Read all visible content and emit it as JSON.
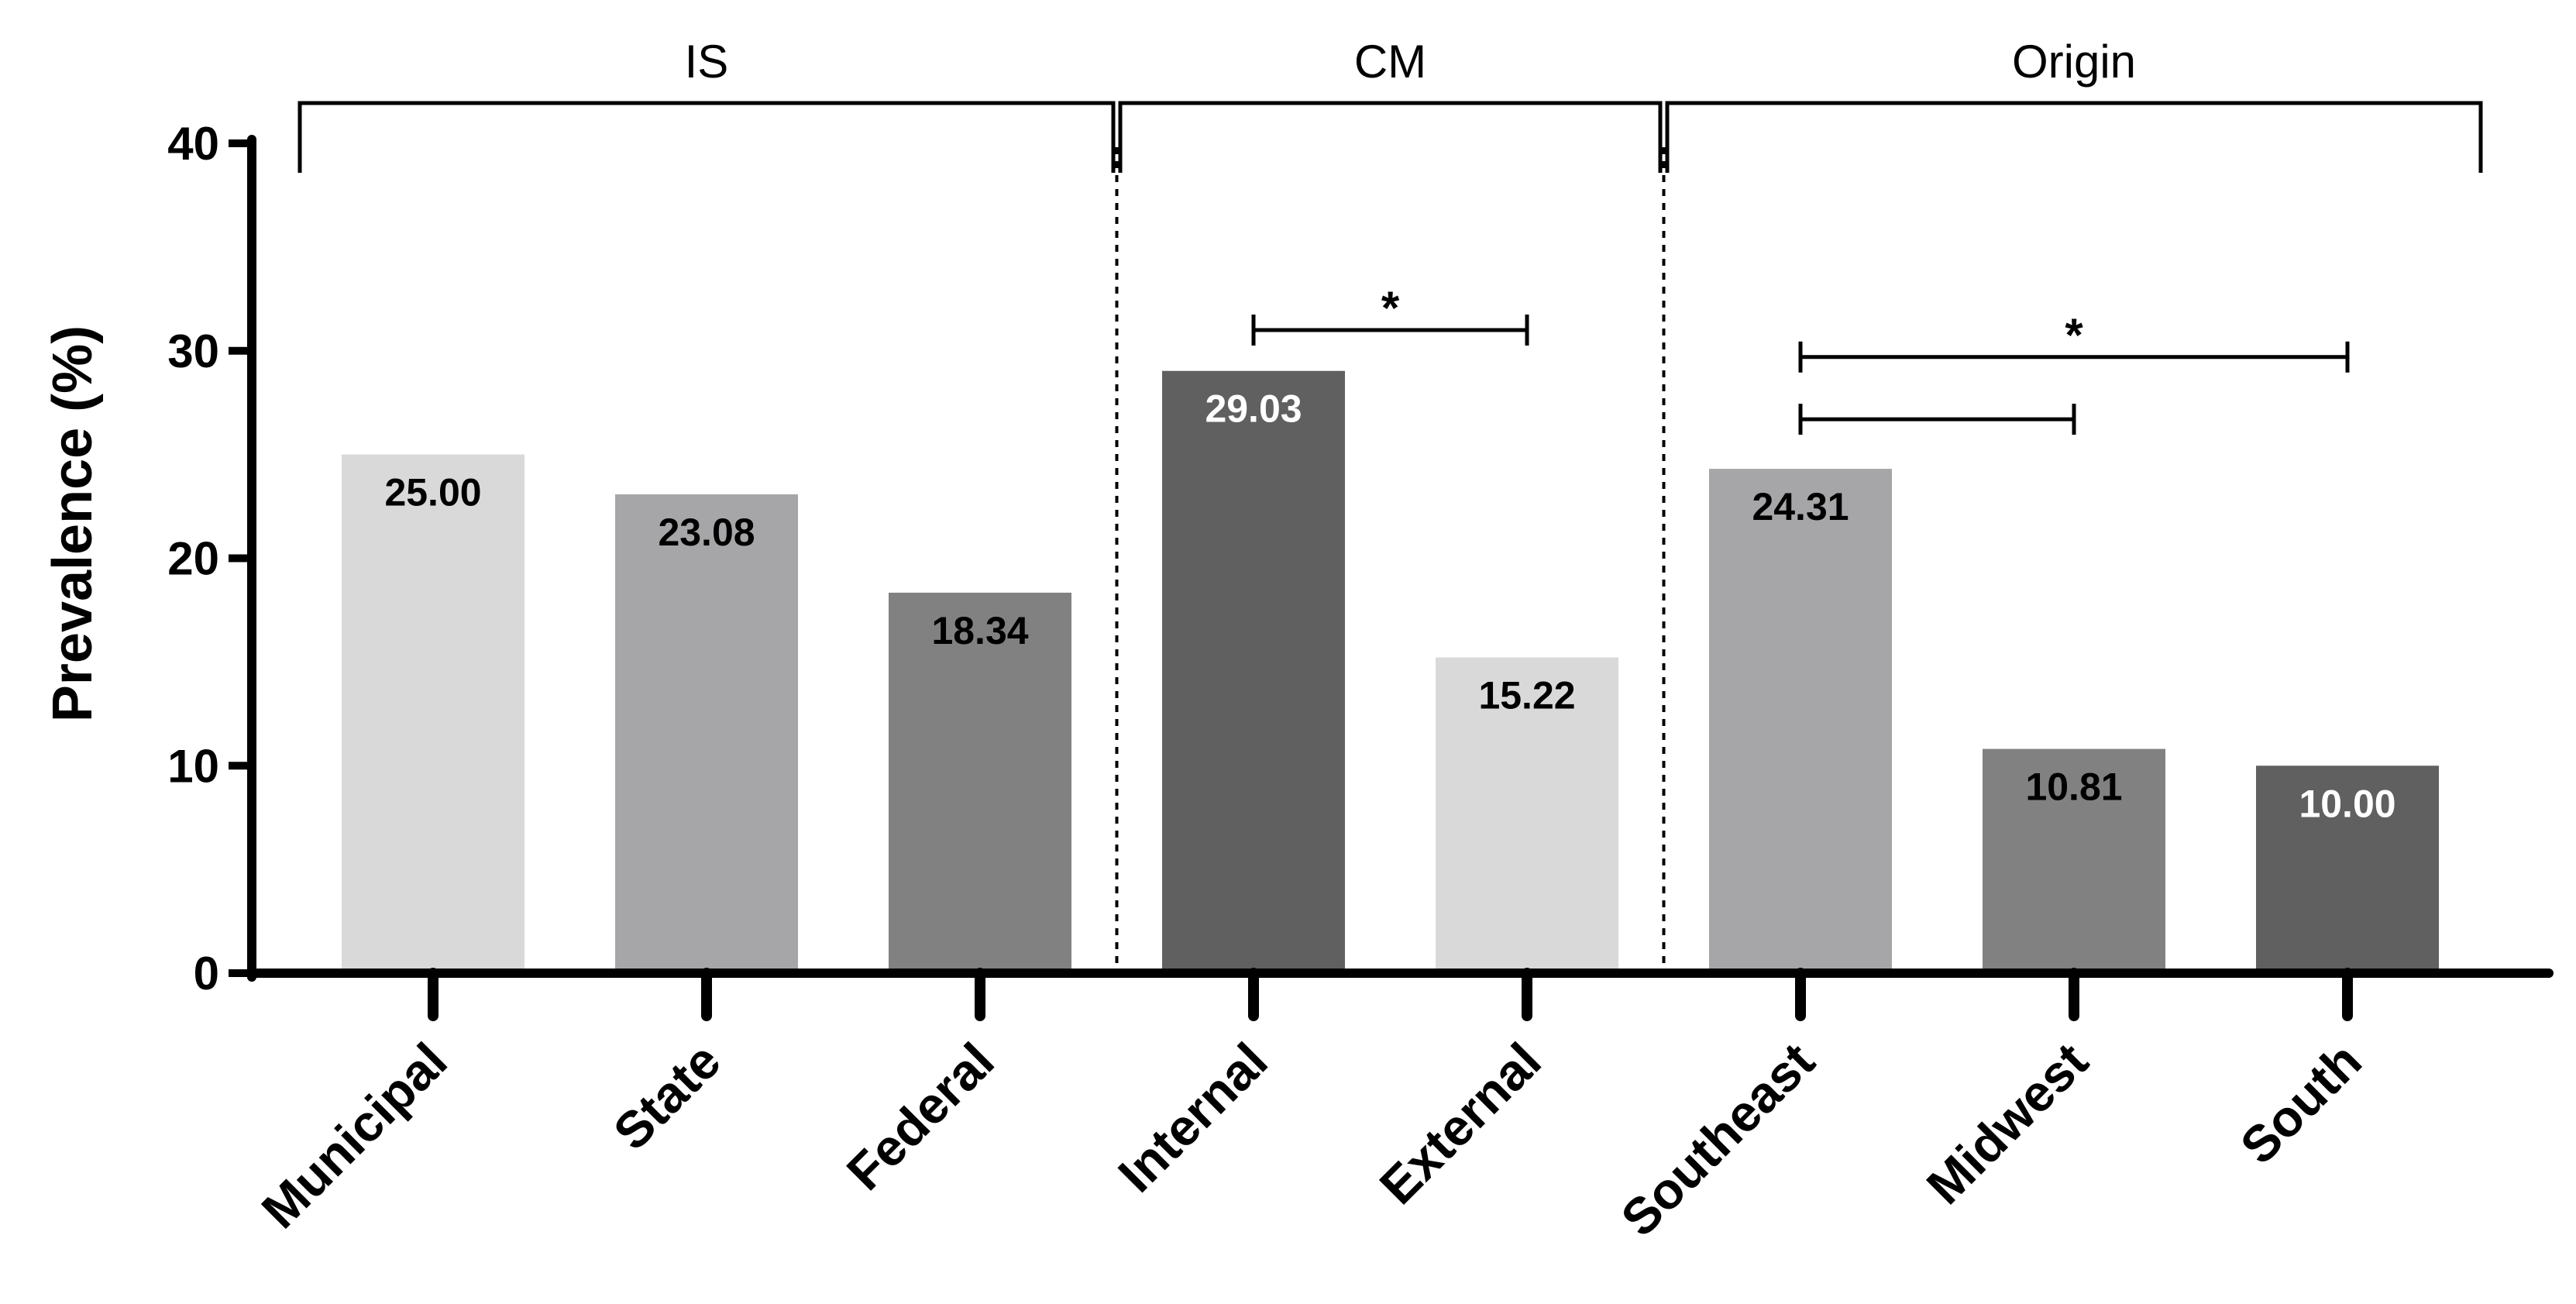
{
  "chart_data": {
    "type": "bar",
    "title": "",
    "xlabel": "",
    "ylabel": "Prevalence (%)",
    "ylim": [
      0,
      40
    ],
    "yticks": [
      0,
      10,
      20,
      30,
      40
    ],
    "grid": false,
    "categories": [
      "Municipal",
      "State",
      "Federal",
      "Internal",
      "External",
      "Southeast",
      "Midwest",
      "South"
    ],
    "values": [
      25.0,
      23.08,
      18.34,
      29.03,
      15.22,
      24.31,
      10.81,
      10.0
    ],
    "value_labels": [
      "25.00",
      "23.08",
      "18.34",
      "29.03",
      "15.22",
      "24.31",
      "10.81",
      "10.00"
    ],
    "bar_colors": [
      "#d9d9d9",
      "#a6a6a8",
      "#818181",
      "#606060",
      "#d9d9d9",
      "#a6a6a8",
      "#818181",
      "#606060"
    ],
    "label_colors": [
      "#000000",
      "#000000",
      "#000000",
      "#ffffff",
      "#000000",
      "#000000",
      "#000000",
      "#ffffff"
    ],
    "groups": [
      {
        "label": "IS",
        "first": 0,
        "last": 2
      },
      {
        "label": "CM",
        "first": 3,
        "last": 4
      },
      {
        "label": "Origin",
        "first": 5,
        "last": 7
      }
    ],
    "significance": [
      {
        "from": 3,
        "to": 4,
        "y": 31,
        "label": "*"
      },
      {
        "from": 5,
        "to": 7,
        "y": 29.7,
        "label": "*"
      },
      {
        "from": 5,
        "to": 6,
        "y": 26.7,
        "label": ""
      }
    ]
  }
}
